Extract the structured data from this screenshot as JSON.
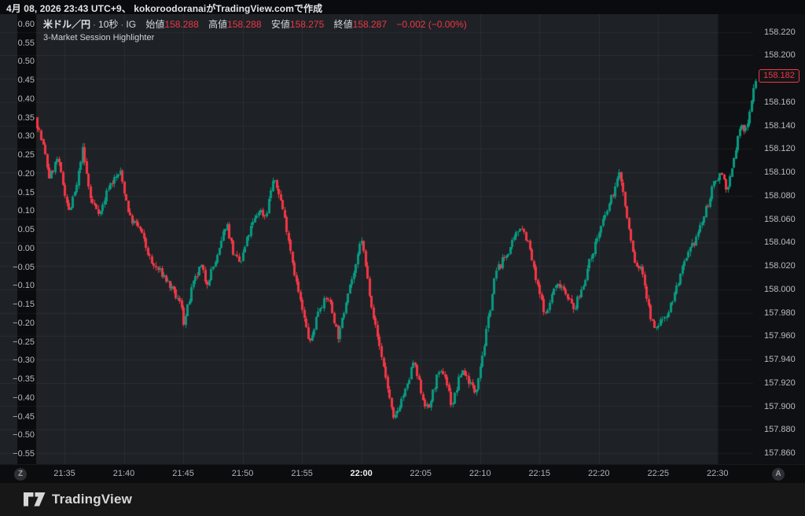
{
  "top_bar": {
    "text": "4月 08, 2026 23:43 UTC+9、 kokoroodoranaiがTradingView.comで作成"
  },
  "legend": {
    "symbol": "米ドル／円",
    "separator": "·",
    "interval": "10秒",
    "broker": "IG",
    "open_label": "始値",
    "open_value": "158.288",
    "high_label": "高値",
    "high_value": "158.288",
    "low_label": "安値",
    "low_value": "158.275",
    "close_label": "終値",
    "close_value": "158.287",
    "change_text": "−0.002 (−0.00%)",
    "indicator_name": "3-Market Session Highlighter"
  },
  "percent_axis_left": {
    "labels": [
      "0.60",
      "0.55",
      "0.50",
      "0.45",
      "0.40",
      "0.35",
      "0.30",
      "0.25",
      "0.20",
      "0.15",
      "0.10",
      "0.05",
      "0.00",
      "−0.05",
      "−0.10",
      "−0.15",
      "−0.20",
      "−0.25",
      "−0.30",
      "−0.35",
      "−0.40",
      "−0.45",
      "−0.50",
      "−0.55"
    ]
  },
  "price_axis_right": {
    "labels": [
      "158.220",
      "158.200",
      "158.160",
      "158.140",
      "158.120",
      "158.100",
      "158.080",
      "158.060",
      "158.040",
      "158.020",
      "158.000",
      "157.980",
      "157.960",
      "157.940",
      "157.920",
      "157.900",
      "157.880",
      "157.860"
    ],
    "last_price_label": "158.182"
  },
  "time_axis": {
    "labels": [
      "21:35",
      "21:40",
      "21:45",
      "21:50",
      "21:55",
      "22:00",
      "22:05",
      "22:10",
      "22:15",
      "22:20",
      "22:25",
      "22:30"
    ],
    "bold_label": "22:00",
    "left_badge": "Z",
    "right_badge": "A"
  },
  "footer": {
    "logo_text": "TradingView"
  },
  "colors": {
    "up": "#089981",
    "down": "#f23645",
    "accent_red": "#f23645",
    "base_bg": "#0e1013",
    "session_bg": "#1e2226",
    "axis_strip_bg": "#0a0b0c",
    "grid": "rgba(240,243,250,0.055)",
    "axis_text": "#b7bac1"
  },
  "chart_data": {
    "type": "candlestick",
    "title": "米ドル／円 10秒 (USD/JPY, 10-second bars, IG)",
    "x_axis_start": "21:33",
    "x_axis_end": "22:33",
    "bar_seconds": 10,
    "time_ticks": [
      "21:35",
      "21:40",
      "21:45",
      "21:50",
      "21:55",
      "22:00",
      "22:05",
      "22:10",
      "22:15",
      "22:20",
      "22:25",
      "22:30"
    ],
    "price_gridlines": [
      158.22,
      158.2,
      158.18,
      158.16,
      158.14,
      158.12,
      158.1,
      158.08,
      158.06,
      158.04,
      158.02,
      158.0,
      157.98,
      157.96,
      157.94,
      157.92,
      157.9,
      157.88,
      157.86
    ],
    "price_axis_range": [
      157.86,
      158.22
    ],
    "percent_axis_range": [
      -0.55,
      0.6
    ],
    "last_price": 158.182,
    "session_high": 158.18,
    "session_low": 157.887,
    "session_boundary_time": "22:30",
    "legend_ohlc": {
      "open": 158.288,
      "high": 158.288,
      "low": 158.275,
      "close": 158.287,
      "change": -0.002,
      "change_pct": "-0.00%"
    },
    "price_path_minutes_after_2133": [
      [
        -0.32,
        158.147
      ],
      [
        0.35,
        158.122
      ],
      [
        0.87,
        158.095
      ],
      [
        1.54,
        158.112
      ],
      [
        2.53,
        158.066
      ],
      [
        3.19,
        158.088
      ],
      [
        3.65,
        158.121
      ],
      [
        4.38,
        158.075
      ],
      [
        5.18,
        158.066
      ],
      [
        5.84,
        158.088
      ],
      [
        6.83,
        158.1
      ],
      [
        7.69,
        158.06
      ],
      [
        8.49,
        158.052
      ],
      [
        9.48,
        158.022
      ],
      [
        10.47,
        158.012
      ],
      [
        11.27,
        157.998
      ],
      [
        12.06,
        157.985
      ],
      [
        12.2,
        157.97
      ],
      [
        12.92,
        158.002
      ],
      [
        13.65,
        158.02
      ],
      [
        14.11,
        158.005
      ],
      [
        15.1,
        158.03
      ],
      [
        15.77,
        158.058
      ],
      [
        16.43,
        158.028
      ],
      [
        16.96,
        158.022
      ],
      [
        17.75,
        158.05
      ],
      [
        18.54,
        158.068
      ],
      [
        19.07,
        158.062
      ],
      [
        19.67,
        158.093
      ],
      [
        20.2,
        158.083
      ],
      [
        20.93,
        158.048
      ],
      [
        21.72,
        158.003
      ],
      [
        22.38,
        157.972
      ],
      [
        22.84,
        157.953
      ],
      [
        23.57,
        157.985
      ],
      [
        24.37,
        157.993
      ],
      [
        25.23,
        157.958
      ],
      [
        26.02,
        158.0
      ],
      [
        26.68,
        158.018
      ],
      [
        27.15,
        158.045
      ],
      [
        27.68,
        158.008
      ],
      [
        28.34,
        157.968
      ],
      [
        29.0,
        157.935
      ],
      [
        29.86,
        157.887
      ],
      [
        30.46,
        157.905
      ],
      [
        30.99,
        157.916
      ],
      [
        31.52,
        157.938
      ],
      [
        32.31,
        157.908
      ],
      [
        32.77,
        157.896
      ],
      [
        33.5,
        157.924
      ],
      [
        34.1,
        157.93
      ],
      [
        34.76,
        157.9
      ],
      [
        35.62,
        157.932
      ],
      [
        36.28,
        157.92
      ],
      [
        36.74,
        157.912
      ],
      [
        37.6,
        157.958
      ],
      [
        38.47,
        158.015
      ],
      [
        39.26,
        158.028
      ],
      [
        39.92,
        158.04
      ],
      [
        40.58,
        158.056
      ],
      [
        41.24,
        158.038
      ],
      [
        41.91,
        158.005
      ],
      [
        42.7,
        157.977
      ],
      [
        43.3,
        158.0
      ],
      [
        43.89,
        158.005
      ],
      [
        44.42,
        157.997
      ],
      [
        45.02,
        157.982
      ],
      [
        45.55,
        157.995
      ],
      [
        46.21,
        158.018
      ],
      [
        46.87,
        158.04
      ],
      [
        47.53,
        158.058
      ],
      [
        48.2,
        158.078
      ],
      [
        48.92,
        158.1
      ],
      [
        49.52,
        158.06
      ],
      [
        50.18,
        158.022
      ],
      [
        50.84,
        158.015
      ],
      [
        51.31,
        157.985
      ],
      [
        51.84,
        157.965
      ],
      [
        52.5,
        157.975
      ],
      [
        53.03,
        157.982
      ],
      [
        53.62,
        158.0
      ],
      [
        54.29,
        158.02
      ],
      [
        54.82,
        158.032
      ],
      [
        55.48,
        158.048
      ],
      [
        56.01,
        158.062
      ],
      [
        56.47,
        158.078
      ],
      [
        57.0,
        158.094
      ],
      [
        57.47,
        158.1
      ],
      [
        58.0,
        158.084
      ],
      [
        58.52,
        158.112
      ],
      [
        59.05,
        158.14
      ],
      [
        59.45,
        158.134
      ],
      [
        59.91,
        158.156
      ],
      [
        60.31,
        158.18
      ]
    ]
  }
}
